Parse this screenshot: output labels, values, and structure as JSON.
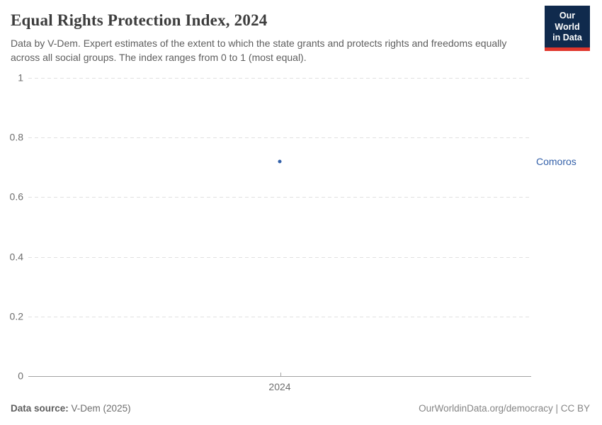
{
  "header": {
    "title": "Equal Rights Protection Index, 2024",
    "subtitle": "Data by V-Dem. Expert estimates of the extent to which the state grants and protects rights and freedoms equally across all social groups. The index ranges from 0 to 1 (most equal).",
    "logo": {
      "line1": "Our World",
      "line2": "in Data"
    }
  },
  "chart_data": {
    "type": "scatter",
    "title": "Equal Rights Protection Index, 2024",
    "x": [
      2024
    ],
    "xtick_labels": [
      "2024"
    ],
    "series": [
      {
        "name": "Comoros",
        "values": [
          0.72
        ],
        "color": "#3360a9"
      }
    ],
    "xlabel": "",
    "ylabel": "",
    "ylim": [
      0,
      1
    ],
    "yticks": [
      0,
      0.2,
      0.4,
      0.6,
      0.8,
      1
    ],
    "ytick_labels": [
      "0",
      "0.2",
      "0.4",
      "0.6",
      "0.8",
      "1"
    ],
    "grid": "horizontal-dashed",
    "legend_position": "entity-label-right"
  },
  "footer": {
    "source_label": "Data source:",
    "source_value": "V-Dem (2025)",
    "note_right": "OurWorldinData.org/democracy | CC BY"
  },
  "colors": {
    "accent_blue": "#3360a9",
    "logo_navy": "#102a4d",
    "logo_red": "#e0362c",
    "gridline": "#e1e1e1",
    "axis_line": "#a3a3a3",
    "title_text": "#3d3d3d",
    "muted_text": "#6e6e6e"
  }
}
